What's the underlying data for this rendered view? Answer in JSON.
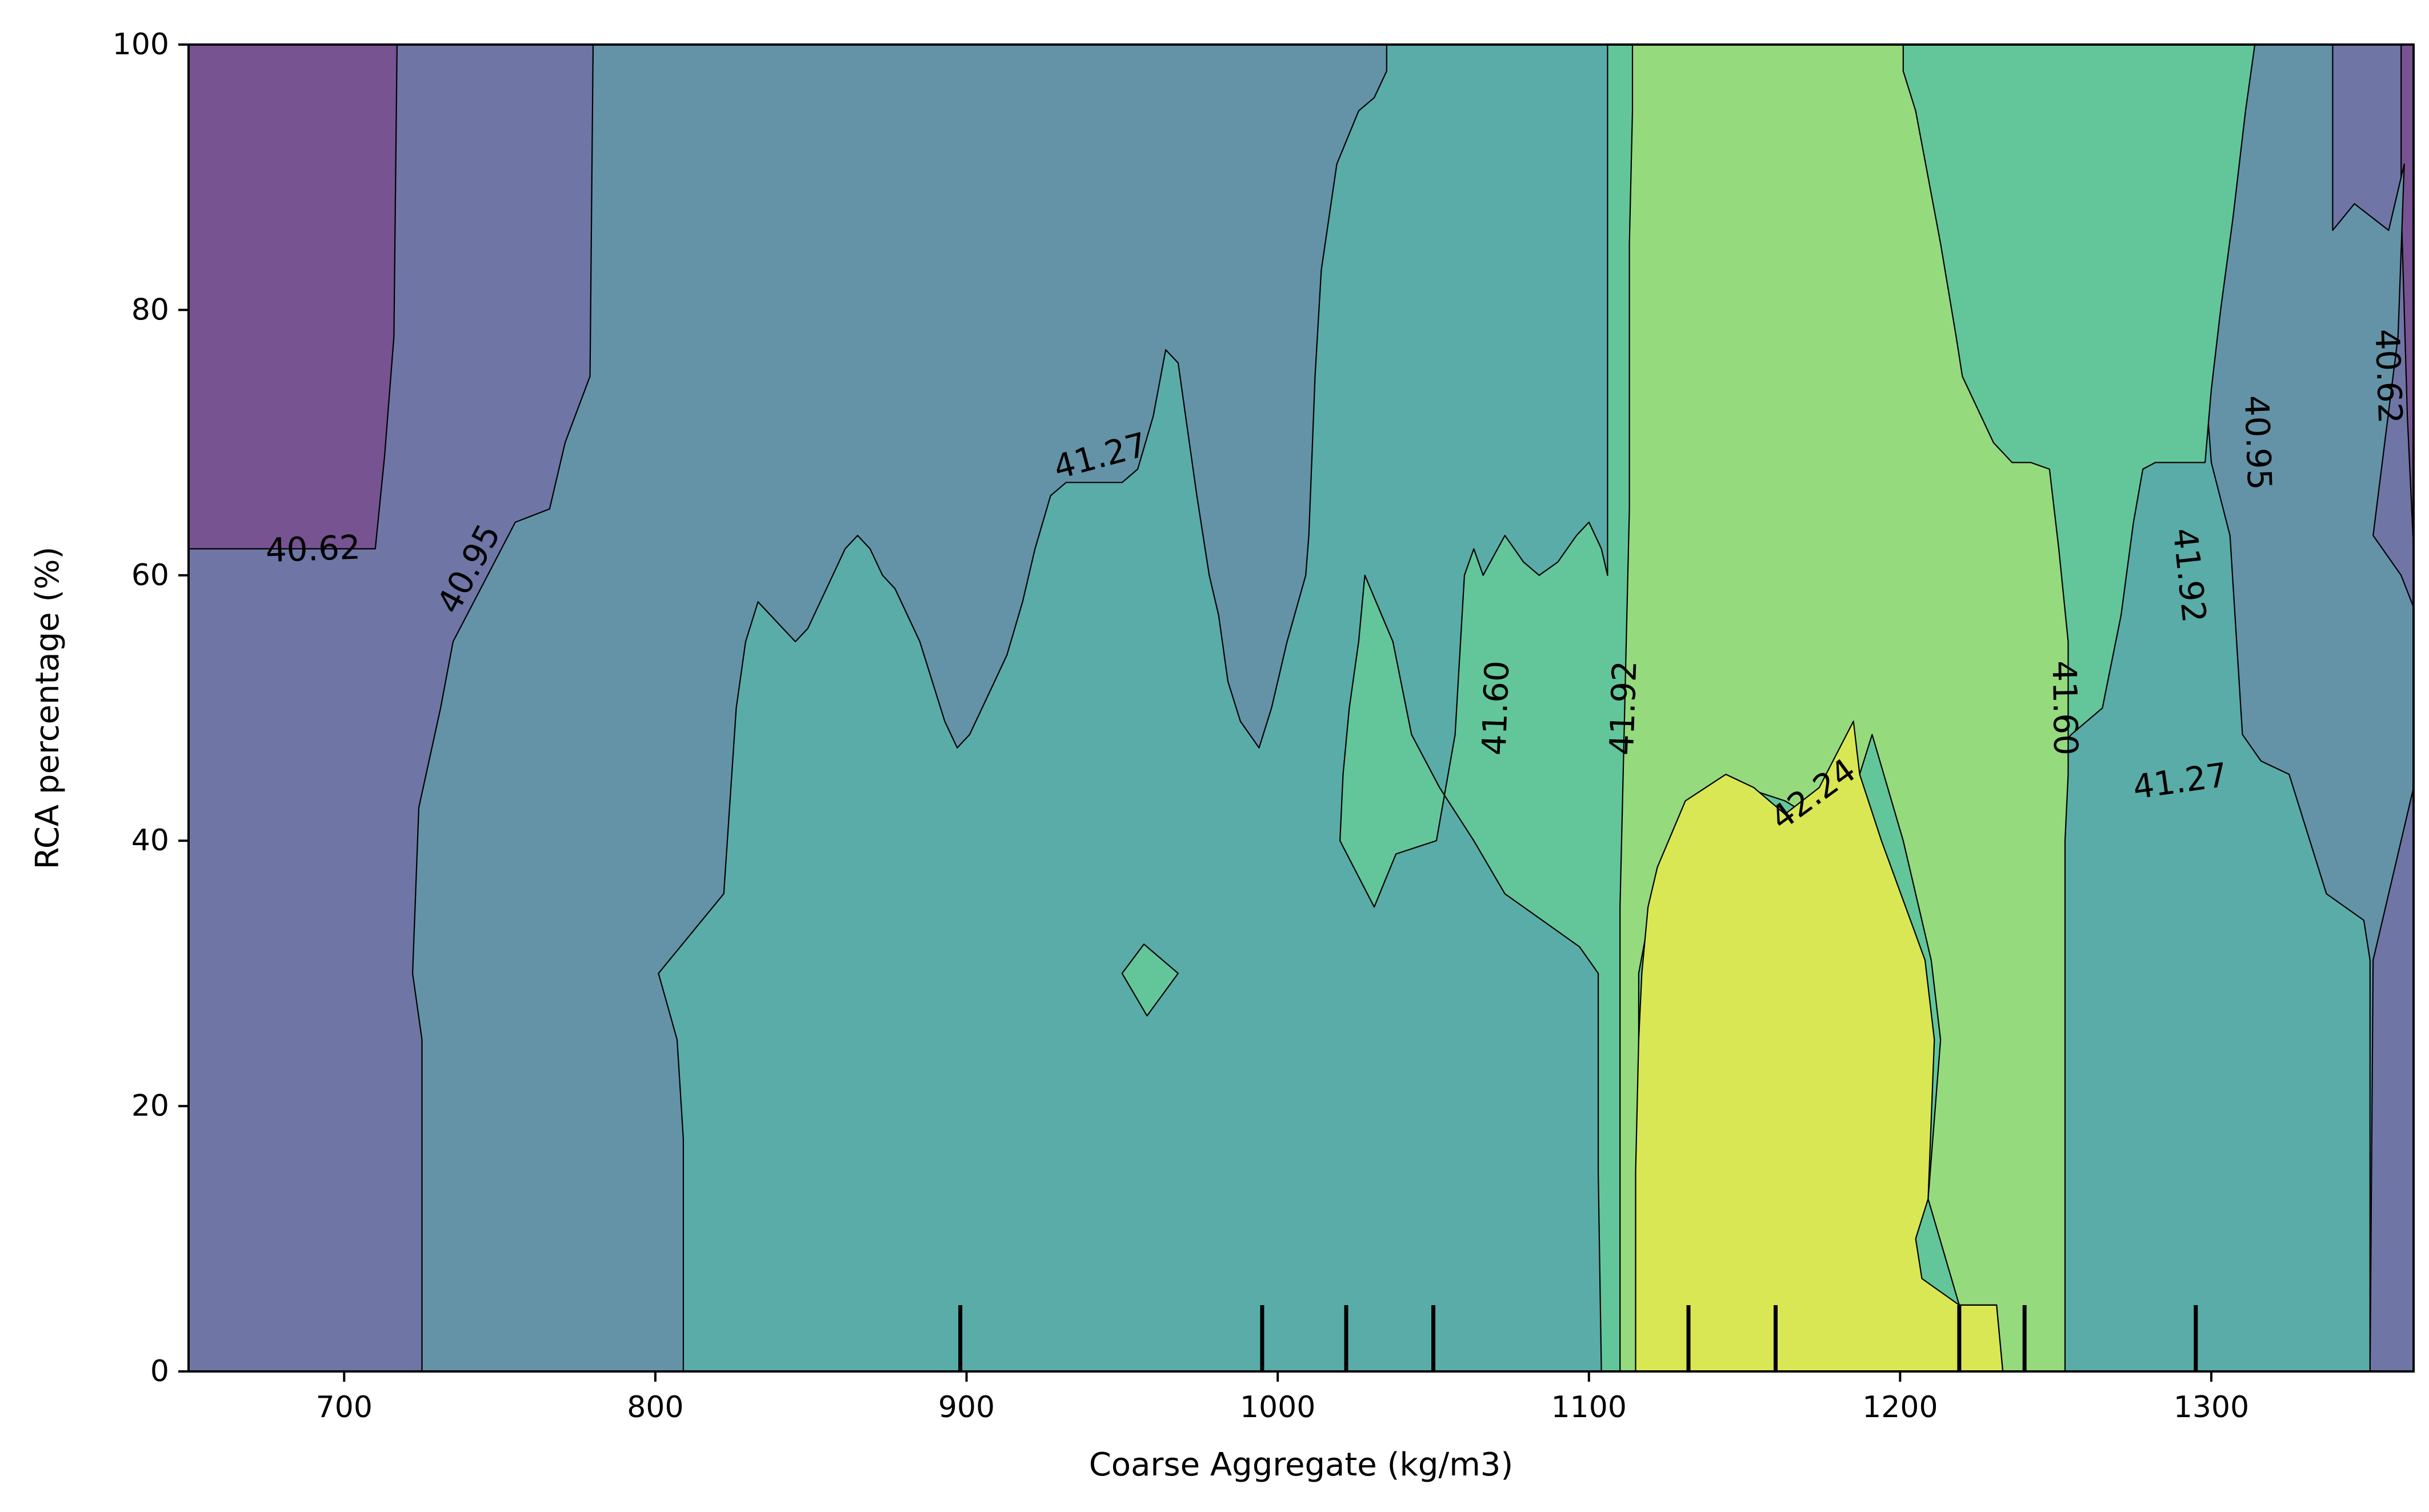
{
  "chart_data": {
    "type": "contour",
    "xlabel": "Coarse Aggregate (kg/m3)",
    "ylabel": "RCA percentage (%)",
    "xlim": [
      650,
      1365
    ],
    "ylim": [
      0,
      100
    ],
    "xticks": [
      700,
      800,
      900,
      1000,
      1100,
      1200,
      1300
    ],
    "yticks": [
      0,
      20,
      40,
      60,
      80,
      100
    ],
    "levels": [
      40.62,
      40.95,
      41.27,
      41.6,
      41.92,
      42.24
    ],
    "level_colors": [
      "#775391",
      "#6f76a5",
      "#6493a8",
      "#5aaca8",
      "#63c69a",
      "#96da7e",
      "#dae754"
    ],
    "contour_labels": [
      {
        "text": "40.62",
        "x": 690,
        "y": 62.0,
        "angle": -2
      },
      {
        "text": "40.95",
        "x": 740,
        "y": 60.5,
        "angle": -62
      },
      {
        "text": "41.27",
        "x": 943,
        "y": 69.0,
        "angle": -15
      },
      {
        "text": "41.60",
        "x": 1070,
        "y": 50.0,
        "angle": -88
      },
      {
        "text": "41.92",
        "x": 1111,
        "y": 50.0,
        "angle": -88
      },
      {
        "text": "42.24",
        "x": 1172,
        "y": 43.5,
        "angle": -36
      },
      {
        "text": "41.92",
        "x": 1293,
        "y": 60.0,
        "angle": 84
      },
      {
        "text": "41.60",
        "x": 1253,
        "y": 50.0,
        "angle": 89
      },
      {
        "text": "41.27",
        "x": 1290,
        "y": 44.5,
        "angle": -8
      },
      {
        "text": "40.95",
        "x": 1315,
        "y": 70.0,
        "angle": 88
      },
      {
        "text": "40.62",
        "x": 1357,
        "y": 75.0,
        "angle": 88
      }
    ],
    "rug_x": [
      898,
      995,
      1022,
      1050,
      1132,
      1160,
      1219,
      1240,
      1295
    ]
  }
}
